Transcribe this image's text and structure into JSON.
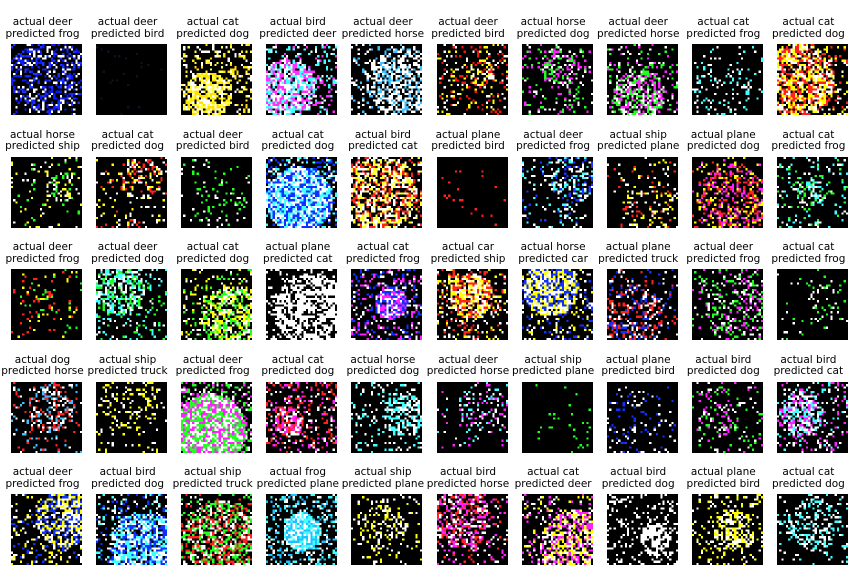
{
  "grid": [
    {
      "actual": "actual deer",
      "predicted": "predicted frog",
      "palette": [
        "#0a1aff",
        "#ffffff",
        "#2030ff"
      ]
    },
    {
      "actual": "actual deer",
      "predicted": "predicted bird",
      "palette": [
        "#101020"
      ]
    },
    {
      "actual": "actual cat",
      "predicted": "predicted dog",
      "palette": [
        "#ffffff",
        "#ffff40",
        "#ffe000"
      ]
    },
    {
      "actual": "actual bird",
      "predicted": "predicted deer",
      "palette": [
        "#ffffff",
        "#ff30ff",
        "#40ffff"
      ]
    },
    {
      "actual": "actual deer",
      "predicted": "predicted horse",
      "palette": [
        "#ffffff",
        "#40c0ff",
        "#ffffff"
      ]
    },
    {
      "actual": "actual deer",
      "predicted": "predicted bird",
      "palette": [
        "#ff1010",
        "#ffff00",
        "#ffffff"
      ]
    },
    {
      "actual": "actual horse",
      "predicted": "predicted dog",
      "palette": [
        "#20ff20",
        "#ff20ff",
        "#ffffff"
      ]
    },
    {
      "actual": "actual deer",
      "predicted": "predicted horse",
      "palette": [
        "#20ff20",
        "#ffffff",
        "#ff20ff"
      ]
    },
    {
      "actual": "actual cat",
      "predicted": "predicted frog",
      "palette": [
        "#40ffff",
        "#ffffff"
      ]
    },
    {
      "actual": "actual cat",
      "predicted": "predicted dog",
      "palette": [
        "#ffff00",
        "#ffffff",
        "#ff2020"
      ]
    },
    {
      "actual": "actual horse",
      "predicted": "predicted ship",
      "palette": [
        "#ffff20",
        "#20ff20",
        "#ffffff"
      ]
    },
    {
      "actual": "actual cat",
      "predicted": "predicted dog",
      "palette": [
        "#ff2020",
        "#ffff00",
        "#ffffff"
      ]
    },
    {
      "actual": "actual deer",
      "predicted": "predicted bird",
      "palette": [
        "#ffffff",
        "#20ff20"
      ]
    },
    {
      "actual": "actual cat",
      "predicted": "predicted dog",
      "palette": [
        "#1030ff",
        "#40ffff",
        "#ffffff"
      ]
    },
    {
      "actual": "actual bird",
      "predicted": "predicted cat",
      "palette": [
        "#ffffff",
        "#ffff20",
        "#ff2020"
      ]
    },
    {
      "actual": "actual plane",
      "predicted": "predicted bird",
      "palette": [
        "#ff2020"
      ]
    },
    {
      "actual": "actual deer",
      "predicted": "predicted frog",
      "palette": [
        "#ffffff",
        "#40ffff",
        "#2030ff"
      ]
    },
    {
      "actual": "actual ship",
      "predicted": "predicted plane",
      "palette": [
        "#ffff00",
        "#ff2020",
        "#ffffff"
      ]
    },
    {
      "actual": "actual plane",
      "predicted": "predicted dog",
      "palette": [
        "#ffff00",
        "#ff2020",
        "#ff20ff"
      ]
    },
    {
      "actual": "actual cat",
      "predicted": "predicted frog",
      "palette": [
        "#ffffff",
        "#40ffff",
        "#20ff20"
      ]
    },
    {
      "actual": "actual deer",
      "predicted": "predicted frog",
      "palette": [
        "#ffff00",
        "#20ff20",
        "#ff2020"
      ]
    },
    {
      "actual": "actual deer",
      "predicted": "predicted dog",
      "palette": [
        "#40ffff",
        "#20ff20",
        "#ffffff"
      ]
    },
    {
      "actual": "actual cat",
      "predicted": "predicted dog",
      "palette": [
        "#20ff20",
        "#ffff00",
        "#ffffff"
      ]
    },
    {
      "actual": "actual plane",
      "predicted": "predicted cat",
      "palette": [
        "#ffffff"
      ]
    },
    {
      "actual": "actual cat",
      "predicted": "predicted frog",
      "palette": [
        "#1030ff",
        "#ff20ff",
        "#ffffff"
      ]
    },
    {
      "actual": "actual car",
      "predicted": "predicted ship",
      "palette": [
        "#ff2020",
        "#ffffff",
        "#ffff00"
      ]
    },
    {
      "actual": "actual horse",
      "predicted": "predicted car",
      "palette": [
        "#ffffff",
        "#1030ff",
        "#ffff00"
      ]
    },
    {
      "actual": "actual plane",
      "predicted": "predicted truck",
      "palette": [
        "#1030ff",
        "#ffffff",
        "#ff2020"
      ]
    },
    {
      "actual": "actual deer",
      "predicted": "predicted frog",
      "palette": [
        "#ff20ff",
        "#20ff20",
        "#ffffff"
      ]
    },
    {
      "actual": "actual cat",
      "predicted": "predicted frog",
      "palette": [
        "#20ff20",
        "#ffffff"
      ]
    },
    {
      "actual": "actual dog",
      "predicted": "predicted horse",
      "palette": [
        "#40c0ff",
        "#ffffff",
        "#ff2020"
      ]
    },
    {
      "actual": "actual ship",
      "predicted": "predicted truck",
      "palette": [
        "#ffff00",
        "#ffffff"
      ]
    },
    {
      "actual": "actual deer",
      "predicted": "predicted frog",
      "palette": [
        "#20ff20",
        "#ff20ff",
        "#ffffff"
      ]
    },
    {
      "actual": "actual cat",
      "predicted": "predicted dog",
      "palette": [
        "#ffffff",
        "#ff2020",
        "#ff20ff"
      ]
    },
    {
      "actual": "actual horse",
      "predicted": "predicted dog",
      "palette": [
        "#ffffff",
        "#40ffff"
      ]
    },
    {
      "actual": "actual deer",
      "predicted": "predicted horse",
      "palette": [
        "#ffffff",
        "#40ffff",
        "#ff20ff"
      ]
    },
    {
      "actual": "actual ship",
      "predicted": "predicted plane",
      "palette": [
        "#20ff20"
      ]
    },
    {
      "actual": "actual plane",
      "predicted": "predicted bird",
      "palette": [
        "#1030ff",
        "#ffffff"
      ]
    },
    {
      "actual": "actual bird",
      "predicted": "predicted dog",
      "palette": [
        "#20ff20",
        "#ffffff",
        "#ff20ff"
      ]
    },
    {
      "actual": "actual bird",
      "predicted": "predicted cat",
      "palette": [
        "#ffffff",
        "#40ffff",
        "#ff20ff"
      ]
    },
    {
      "actual": "actual deer",
      "predicted": "predicted frog",
      "palette": [
        "#ffffff",
        "#ffff00",
        "#1030ff"
      ]
    },
    {
      "actual": "actual bird",
      "predicted": "predicted dog",
      "palette": [
        "#ffffff",
        "#1030ff",
        "#40ffff"
      ]
    },
    {
      "actual": "actual ship",
      "predicted": "predicted truck",
      "palette": [
        "#20ff20",
        "#ffffff",
        "#ff2020"
      ]
    },
    {
      "actual": "actual frog",
      "predicted": "predicted plane",
      "palette": [
        "#40ffff",
        "#ffffff",
        "#20c0ff"
      ]
    },
    {
      "actual": "actual ship",
      "predicted": "predicted plane",
      "palette": [
        "#ffff00",
        "#ffffff"
      ]
    },
    {
      "actual": "actual bird",
      "predicted": "predicted horse",
      "palette": [
        "#ff2020",
        "#ffffff",
        "#ff20ff"
      ]
    },
    {
      "actual": "actual cat",
      "predicted": "predicted deer",
      "palette": [
        "#ff20ff",
        "#ffff00",
        "#ffffff"
      ]
    },
    {
      "actual": "actual bird",
      "predicted": "predicted dog",
      "palette": [
        "#ffffff"
      ]
    },
    {
      "actual": "actual plane",
      "predicted": "predicted bird",
      "palette": [
        "#ffffff",
        "#ffff00"
      ]
    },
    {
      "actual": "actual cat",
      "predicted": "predicted dog",
      "palette": [
        "#40ffff",
        "#ffffff"
      ]
    }
  ]
}
